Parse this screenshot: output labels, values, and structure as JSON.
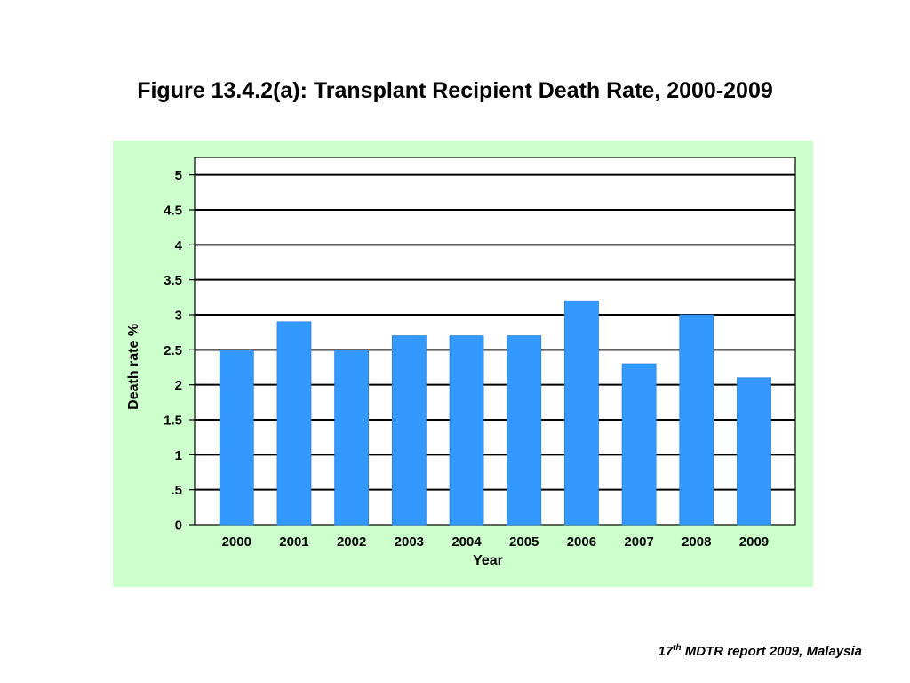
{
  "slide": {
    "title": "Figure 13.4.2(a): Transplant Recipient Death Rate, 2000-2009",
    "footnote": {
      "num": "17",
      "sup": "th",
      "rest": " MDTR report 2009, Malaysia"
    }
  },
  "colors": {
    "panel_bg": "#ccffcc",
    "plot_bg": "#ffffff",
    "bar": "#3399ff",
    "bar_edge": "#2b7fd6",
    "grid": "#000000"
  },
  "chart_data": {
    "type": "bar",
    "title": "",
    "xlabel": "Year",
    "ylabel": "Death rate %",
    "categories": [
      "2000",
      "2001",
      "2002",
      "2003",
      "2004",
      "2005",
      "2006",
      "2007",
      "2008",
      "2009"
    ],
    "values": [
      2.5,
      2.9,
      2.5,
      2.7,
      2.7,
      2.7,
      3.2,
      2.3,
      3.0,
      2.1
    ],
    "ylim": [
      0,
      5.25
    ],
    "yticks": [
      0,
      0.5,
      1,
      1.5,
      2,
      2.5,
      3,
      3.5,
      4,
      4.5,
      5
    ],
    "ytick_labels": [
      "0",
      ".5",
      "1",
      "1.5",
      "2",
      "2.5",
      "3",
      "3.5",
      "4",
      "4.5",
      "5"
    ],
    "grid": true,
    "legend": "none"
  }
}
